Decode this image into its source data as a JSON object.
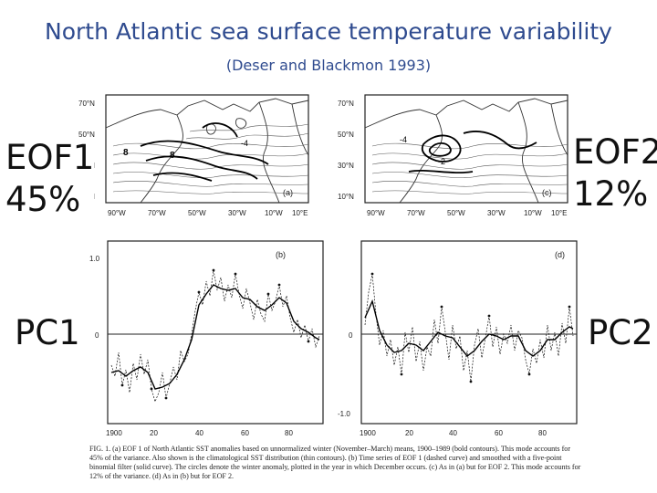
{
  "slide": {
    "title": "North Atlantic sea surface temperature variability",
    "subtitle": "(Deser and Blackmon 1993)"
  },
  "labels": {
    "eof1_name": "EOF1",
    "eof1_pct": "45%",
    "eof2_name": "EOF2",
    "eof2_pct": "12%",
    "pc1": "PC1",
    "pc2": "PC2"
  },
  "maps": {
    "lat_ticks": [
      "70°N",
      "50°N",
      "30°N",
      "10°N"
    ],
    "lon_ticks": [
      "90°W",
      "70°W",
      "50°W",
      "30°W",
      "10°W",
      "10°E"
    ],
    "panel_a": "(a)",
    "panel_c": "(c)"
  },
  "timeseries": {
    "panel_b": "(b)",
    "panel_d": "(d)",
    "y_ticks_left": [
      "1.0",
      "0"
    ],
    "y_ticks_right": [
      "0",
      "-1.0"
    ],
    "x_ticks_left": [
      "1900",
      "20",
      "40",
      "60",
      "80"
    ],
    "x_ticks_right": [
      "1900",
      "20",
      "40",
      "60",
      "80"
    ]
  },
  "caption": {
    "text": "FIG. 1. (a) EOF 1 of North Atlantic SST anomalies based on unnormalized winter (November–March) means, 1900–1989 (bold contours). This mode accounts for 45% of the variance. Also shown is the climatological SST distribution (thin contours). (b) Time series of EOF 1 (dashed curve) and smoothed with a five-point binomial filter (solid curve). The circles denote the winter anomaly, plotted in the year in which December occurs. (c) As in (a) but for EOF 2. This mode accounts for 12% of the variance. (d) As in (b) but for EOF 2."
  },
  "colors": {
    "title": "#2f4b8f",
    "ink": "#222222"
  }
}
